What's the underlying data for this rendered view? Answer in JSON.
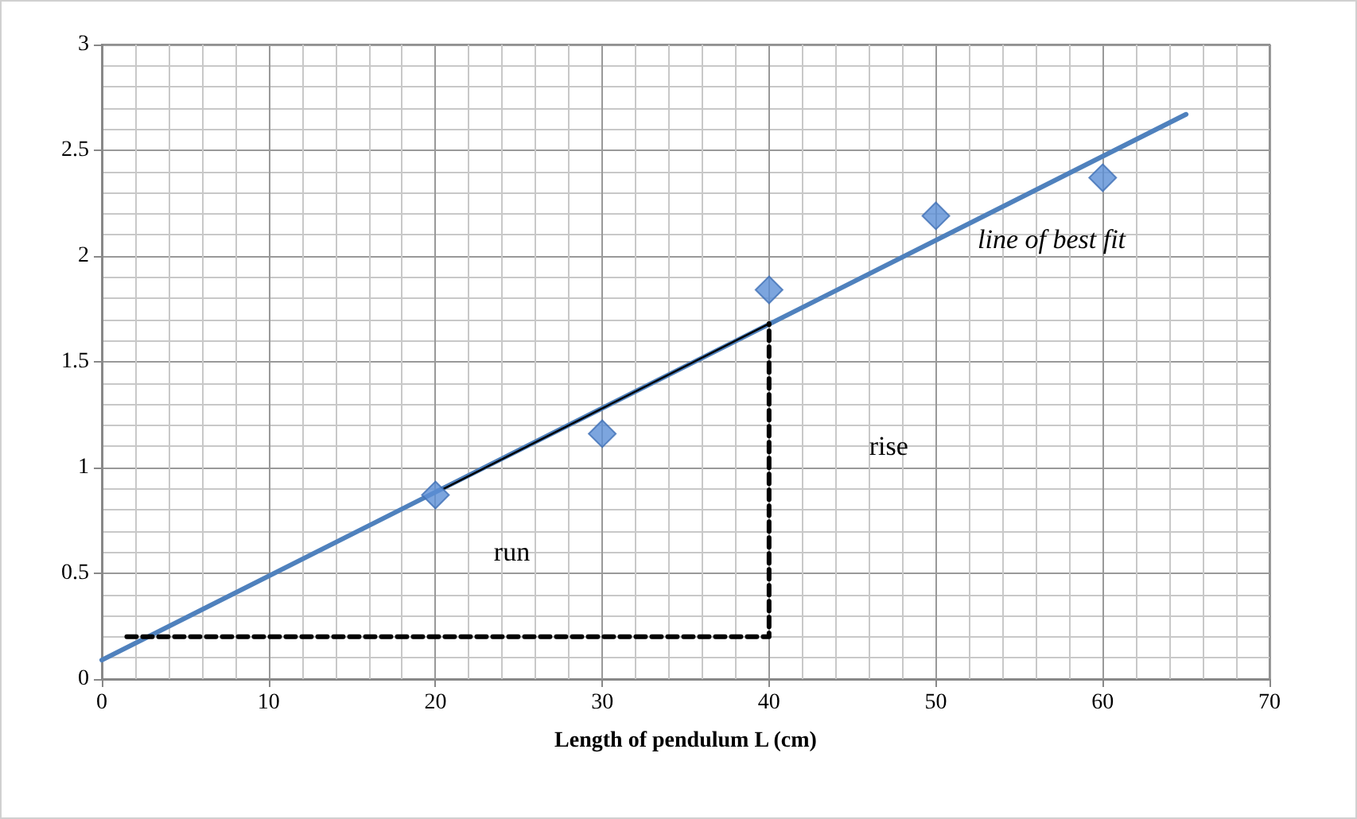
{
  "chart_data": {
    "type": "scatter",
    "xlabel": "Length of pendulum L (cm)",
    "xlim": [
      0,
      70
    ],
    "xticks": [
      0,
      10,
      20,
      30,
      40,
      50,
      60,
      70
    ],
    "ylim": [
      0,
      3
    ],
    "yticks": [
      0,
      0.5,
      1,
      1.5,
      2,
      2.5,
      3
    ],
    "grid": true,
    "series": [
      {
        "type": "line",
        "color": "#4f81bd",
        "x": [
          0,
          65
        ],
        "values": [
          0.09,
          2.67
        ],
        "marker": "none",
        "line_style": "solid"
      },
      {
        "type": "line",
        "color": "#000000",
        "x": [
          20.5,
          40
        ],
        "values": [
          0.9,
          1.68
        ],
        "marker": "none",
        "line_style": "solid"
      },
      {
        "type": "line",
        "color": "#000000",
        "x": [
          1.5,
          40,
          40
        ],
        "values": [
          0.2,
          0.2,
          1.68
        ],
        "marker": "none",
        "line_style": "dashed"
      },
      {
        "color": "#5b8fd6",
        "x": [
          20,
          30,
          40,
          50,
          60
        ],
        "values": [
          0.87,
          1.16,
          1.84,
          2.19,
          2.37
        ],
        "marker": "diamond"
      }
    ],
    "annotations": [
      "line of best fit",
      "rise",
      "run"
    ]
  }
}
